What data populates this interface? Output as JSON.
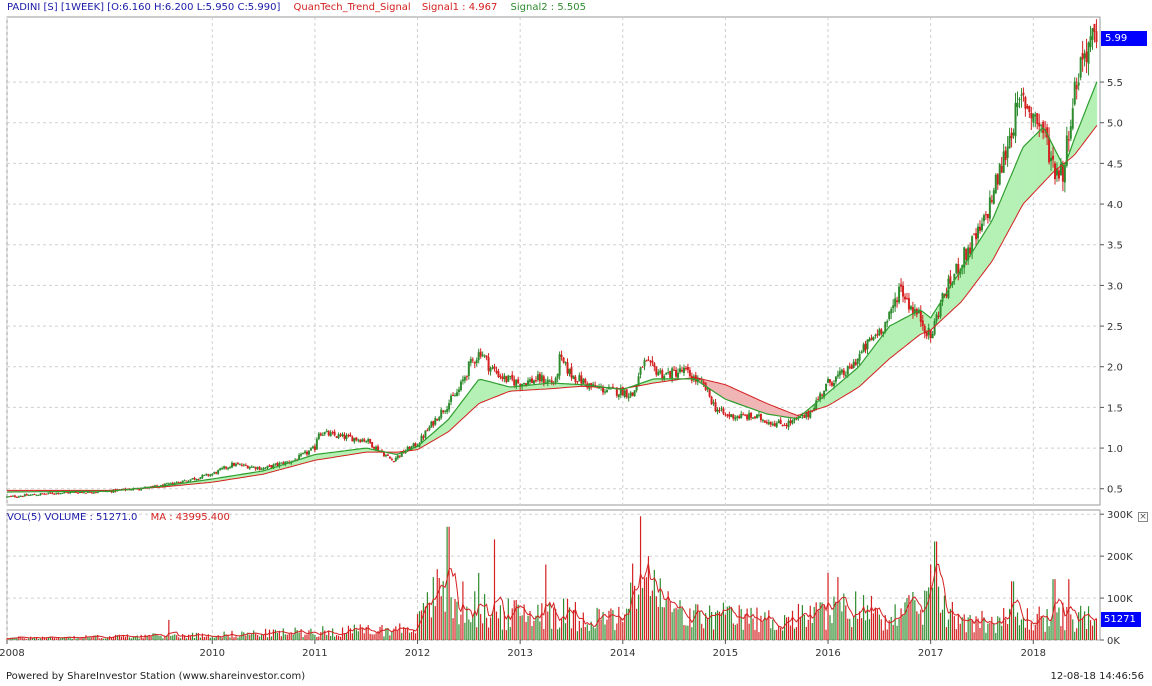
{
  "header": {
    "symbol": "PADINI [S] [1WEEK] [O:6.160 H:6.200 L:5.950 C:5.990]",
    "indicator": "QuanTech_Trend_Signal",
    "signal1": "Signal1 : 4.967",
    "signal2": "Signal2 : 5.505"
  },
  "volume_header": {
    "volume_label": "VOL(5)  VOLUME : 51271.0",
    "ma_label": "MA : 43995.400"
  },
  "last_price_tag": "5.99",
  "last_volume_tag": "51271",
  "close_icon": "close-icon",
  "footer": {
    "left": "Powered by ShareInvestor Station (www.shareinvestor.com)",
    "right": "12-08-18 14:46:56"
  },
  "colors": {
    "up": "#2e8b2e",
    "down": "#d42020",
    "signal1": "#d42020",
    "signal2": "#2e9e2e",
    "fill_bull": "#b5f0b5",
    "fill_bear": "#f0b5b5",
    "tag": "#0000ff",
    "grid": "#d0d0d0"
  },
  "chart_data": [
    {
      "type": "candlestick",
      "interval": "1WEEK",
      "y_ticks": [
        0.5,
        1.0,
        1.5,
        2.0,
        2.5,
        3.0,
        3.5,
        4.0,
        4.5,
        5.0,
        5.5
      ],
      "y_range": [
        0.3,
        6.3
      ],
      "x_ticks": [
        "2008",
        "2010",
        "2011",
        "2012",
        "2013",
        "2014",
        "2015",
        "2016",
        "2017",
        "2018"
      ],
      "x_tick_years": [
        2008.0,
        2010.0,
        2011.0,
        2012.0,
        2013.0,
        2014.0,
        2015.0,
        2016.0,
        2017.0,
        2018.0
      ],
      "x_range": [
        2008.0,
        2018.65
      ],
      "last_close": 5.99,
      "price_path": [
        [
          2008.0,
          0.4
        ],
        [
          2008.5,
          0.45
        ],
        [
          2009.0,
          0.47
        ],
        [
          2009.5,
          0.53
        ],
        [
          2010.0,
          0.68
        ],
        [
          2010.2,
          0.8
        ],
        [
          2010.5,
          0.75
        ],
        [
          2010.8,
          0.85
        ],
        [
          2011.0,
          1.0
        ],
        [
          2011.03,
          1.2
        ],
        [
          2011.2,
          1.15
        ],
        [
          2011.5,
          1.1
        ],
        [
          2011.7,
          0.9
        ],
        [
          2011.75,
          0.85
        ],
        [
          2011.9,
          0.98
        ],
        [
          2012.0,
          1.05
        ],
        [
          2012.2,
          1.4
        ],
        [
          2012.4,
          1.7
        ],
        [
          2012.5,
          2.0
        ],
        [
          2012.62,
          2.2
        ],
        [
          2012.7,
          2.0
        ],
        [
          2012.85,
          1.85
        ],
        [
          2013.0,
          1.8
        ],
        [
          2013.2,
          1.85
        ],
        [
          2013.35,
          1.8
        ],
        [
          2013.38,
          2.1
        ],
        [
          2013.5,
          1.9
        ],
        [
          2013.7,
          1.75
        ],
        [
          2013.9,
          1.7
        ],
        [
          2014.0,
          1.7
        ],
        [
          2014.1,
          1.65
        ],
        [
          2014.2,
          2.05
        ],
        [
          2014.4,
          1.9
        ],
        [
          2014.6,
          1.95
        ],
        [
          2014.8,
          1.75
        ],
        [
          2014.9,
          1.5
        ],
        [
          2015.0,
          1.4
        ],
        [
          2015.3,
          1.38
        ],
        [
          2015.5,
          1.3
        ],
        [
          2015.6,
          1.3
        ],
        [
          2015.8,
          1.4
        ],
        [
          2015.9,
          1.6
        ],
        [
          2016.0,
          1.8
        ],
        [
          2016.2,
          1.95
        ],
        [
          2016.4,
          2.3
        ],
        [
          2016.6,
          2.6
        ],
        [
          2016.7,
          3.0
        ],
        [
          2016.8,
          2.75
        ],
        [
          2016.9,
          2.6
        ],
        [
          2017.0,
          2.35
        ],
        [
          2017.1,
          2.8
        ],
        [
          2017.3,
          3.3
        ],
        [
          2017.5,
          3.7
        ],
        [
          2017.7,
          4.5
        ],
        [
          2017.8,
          5.0
        ],
        [
          2017.9,
          5.3
        ],
        [
          2018.0,
          5.1
        ],
        [
          2018.1,
          4.9
        ],
        [
          2018.2,
          4.45
        ],
        [
          2018.3,
          4.4
        ],
        [
          2018.35,
          5.0
        ],
        [
          2018.45,
          5.7
        ],
        [
          2018.55,
          6.0
        ],
        [
          2018.62,
          5.99
        ]
      ],
      "signal1_path": [
        [
          2008.0,
          0.48
        ],
        [
          2009.0,
          0.48
        ],
        [
          2009.5,
          0.52
        ],
        [
          2010.0,
          0.58
        ],
        [
          2010.5,
          0.68
        ],
        [
          2011.0,
          0.85
        ],
        [
          2011.5,
          0.95
        ],
        [
          2011.8,
          0.95
        ],
        [
          2012.0,
          0.98
        ],
        [
          2012.3,
          1.2
        ],
        [
          2012.6,
          1.55
        ],
        [
          2012.9,
          1.7
        ],
        [
          2013.3,
          1.73
        ],
        [
          2013.6,
          1.76
        ],
        [
          2014.0,
          1.73
        ],
        [
          2014.3,
          1.8
        ],
        [
          2014.7,
          1.87
        ],
        [
          2015.0,
          1.78
        ],
        [
          2015.4,
          1.55
        ],
        [
          2015.7,
          1.4
        ],
        [
          2016.0,
          1.52
        ],
        [
          2016.3,
          1.75
        ],
        [
          2016.6,
          2.1
        ],
        [
          2016.9,
          2.4
        ],
        [
          2017.0,
          2.45
        ],
        [
          2017.3,
          2.8
        ],
        [
          2017.6,
          3.3
        ],
        [
          2017.9,
          4.0
        ],
        [
          2018.2,
          4.4
        ],
        [
          2018.4,
          4.6
        ],
        [
          2018.62,
          4.967
        ]
      ],
      "signal2_path": [
        [
          2008.0,
          0.46
        ],
        [
          2009.0,
          0.47
        ],
        [
          2009.5,
          0.53
        ],
        [
          2010.0,
          0.62
        ],
        [
          2010.5,
          0.72
        ],
        [
          2011.0,
          0.92
        ],
        [
          2011.5,
          1.0
        ],
        [
          2011.8,
          0.92
        ],
        [
          2012.0,
          1.02
        ],
        [
          2012.3,
          1.35
        ],
        [
          2012.6,
          1.85
        ],
        [
          2012.9,
          1.75
        ],
        [
          2013.3,
          1.8
        ],
        [
          2013.6,
          1.78
        ],
        [
          2014.0,
          1.72
        ],
        [
          2014.3,
          1.85
        ],
        [
          2014.7,
          1.85
        ],
        [
          2015.0,
          1.6
        ],
        [
          2015.4,
          1.42
        ],
        [
          2015.7,
          1.36
        ],
        [
          2016.0,
          1.68
        ],
        [
          2016.3,
          2.0
        ],
        [
          2016.6,
          2.5
        ],
        [
          2016.9,
          2.7
        ],
        [
          2017.0,
          2.6
        ],
        [
          2017.3,
          3.2
        ],
        [
          2017.6,
          3.8
        ],
        [
          2017.9,
          4.7
        ],
        [
          2018.1,
          4.95
        ],
        [
          2018.3,
          4.45
        ],
        [
          2018.4,
          4.8
        ],
        [
          2018.62,
          5.505
        ]
      ]
    },
    {
      "type": "bar",
      "name": "volume",
      "y_ticks": [
        0,
        100000,
        200000,
        300000
      ],
      "y_tick_labels": [
        "0K",
        "100K",
        "200K",
        "300K"
      ],
      "y_range": [
        0,
        310000
      ],
      "last_volume": 51271,
      "ma_period": 5,
      "ma_last": 43995.4,
      "volume_path": [
        [
          2008.0,
          5000
        ],
        [
          2009.0,
          8000
        ],
        [
          2010.0,
          12000
        ],
        [
          2011.0,
          20000
        ],
        [
          2011.8,
          25000
        ],
        [
          2012.0,
          40000
        ],
        [
          2012.2,
          110000
        ],
        [
          2012.4,
          90000
        ],
        [
          2012.6,
          70000
        ],
        [
          2012.9,
          60000
        ],
        [
          2013.3,
          70000
        ],
        [
          2013.6,
          55000
        ],
        [
          2014.0,
          50000
        ],
        [
          2014.2,
          180000
        ],
        [
          2014.3,
          110000
        ],
        [
          2014.6,
          55000
        ],
        [
          2015.0,
          55000
        ],
        [
          2015.5,
          45000
        ],
        [
          2016.0,
          65000
        ],
        [
          2016.3,
          75000
        ],
        [
          2016.7,
          55000
        ],
        [
          2017.0,
          90000
        ],
        [
          2017.2,
          60000
        ],
        [
          2017.5,
          45000
        ],
        [
          2018.0,
          50000
        ],
        [
          2018.3,
          55000
        ],
        [
          2018.62,
          51271
        ]
      ],
      "volume_spikes": [
        [
          2009.57,
          48000
        ],
        [
          2012.15,
          150000
        ],
        [
          2012.3,
          270000
        ],
        [
          2012.6,
          160000
        ],
        [
          2012.75,
          240000
        ],
        [
          2013.25,
          180000
        ],
        [
          2014.18,
          295000
        ],
        [
          2014.25,
          200000
        ],
        [
          2016.0,
          160000
        ],
        [
          2016.1,
          150000
        ],
        [
          2017.0,
          180000
        ],
        [
          2017.05,
          235000
        ],
        [
          2017.8,
          140000
        ],
        [
          2018.2,
          145000
        ],
        [
          2018.35,
          145000
        ]
      ]
    }
  ]
}
